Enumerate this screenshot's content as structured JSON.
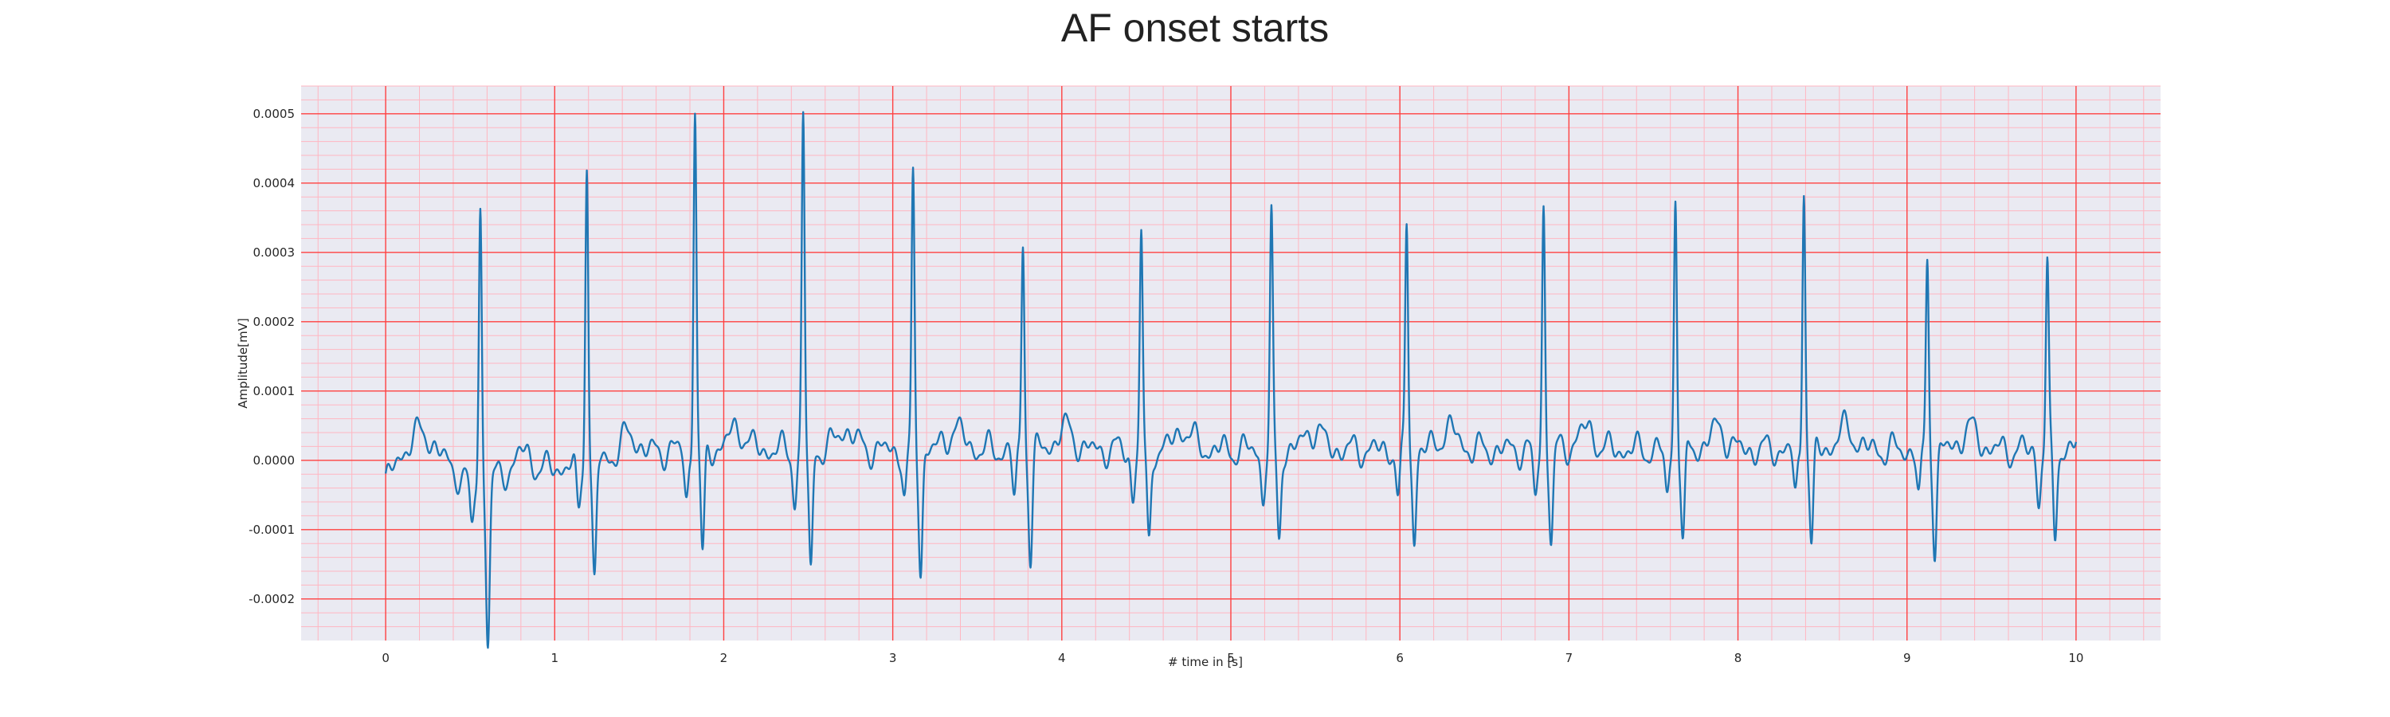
{
  "chart_data": {
    "type": "line",
    "title": "AF onset starts",
    "xlabel": "# time in [s]",
    "ylabel": "Amplitude[mV]",
    "xlim": [
      -0.5,
      10.5
    ],
    "ylim": [
      -0.00026,
      0.00054
    ],
    "xticks": [
      0,
      1,
      2,
      3,
      4,
      5,
      6,
      7,
      8,
      9,
      10
    ],
    "xtick_labels": [
      "0",
      "1",
      "2",
      "3",
      "4",
      "5",
      "6",
      "7",
      "8",
      "9",
      "10"
    ],
    "yticks": [
      -0.0002,
      -0.0001,
      0.0,
      0.0001,
      0.0002,
      0.0003,
      0.0004,
      0.0005
    ],
    "ytick_labels": [
      "-0.0002",
      "-0.0001",
      "0.0000",
      "0.0001",
      "0.0002",
      "0.0003",
      "0.0004",
      "0.0005"
    ],
    "grid": true,
    "minor_grid": true,
    "colors": {
      "line": "#1f77b4",
      "plot_bg": "#eaeaf2",
      "major_grid": "#ff4040",
      "minor_grid": "#ffb6c1"
    },
    "series": [
      {
        "beat_times": [
          0.56,
          1.19,
          1.83,
          2.47,
          3.12,
          3.77,
          4.47,
          5.24,
          6.04,
          6.85,
          7.63,
          8.39,
          9.12,
          9.83
        ],
        "r_peaks": [
          0.00039,
          0.00044,
          0.0005,
          0.00048,
          0.00039,
          0.0003,
          0.00031,
          0.00033,
          0.00033,
          0.00035,
          0.00037,
          0.00039,
          0.00027,
          0.00027
        ],
        "s_troughs": [
          -0.00023,
          -0.00018,
          -0.00016,
          -0.00018,
          -0.00017,
          -0.00015,
          -0.00014,
          -0.00013,
          -0.00013,
          -0.00013,
          -0.00014,
          -0.00014,
          -0.00014,
          -0.00013
        ],
        "x_start": 0.0,
        "x_end": 10.0,
        "y_start": -5e-05,
        "y_end": 1.5e-05
      }
    ]
  }
}
